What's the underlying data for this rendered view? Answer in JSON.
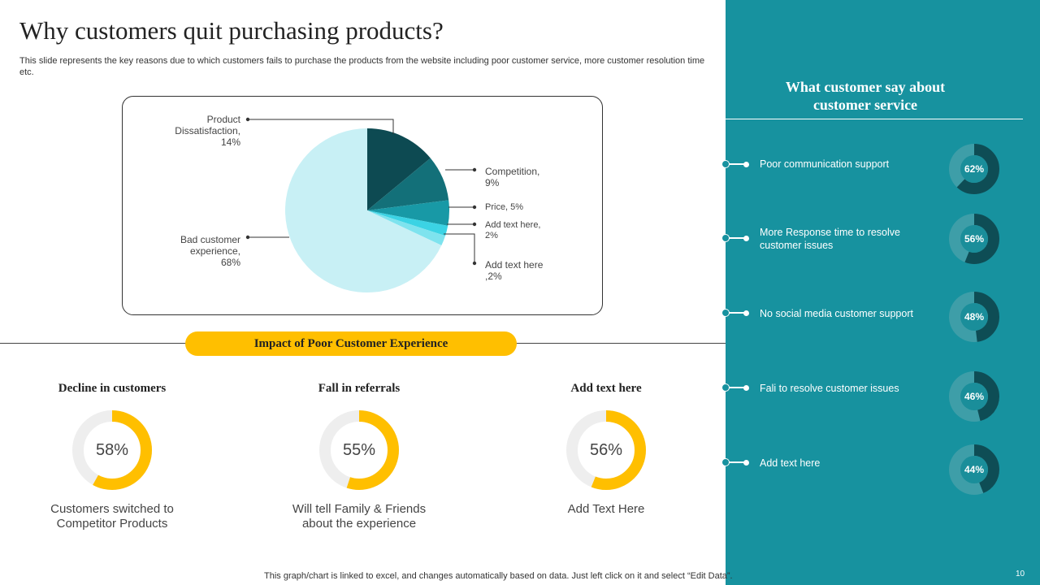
{
  "slide": {
    "title": "Why customers quit purchasing products?",
    "subtitle": "This slide represents the key reasons due to which customers fails to purchase the products from the website including poor customer service, more customer resolution time etc.",
    "footer_note": "This graph/chart is linked to excel,  and changes automatically based on data. Just left click on it and select “Edit Data”.",
    "page_number": "10"
  },
  "chart_data": {
    "type": "pie",
    "slices": [
      {
        "label": "Product Dissatisfaction",
        "value": 14,
        "color": "#0D4A52"
      },
      {
        "label": "Competition",
        "value": 9,
        "color": "#137079"
      },
      {
        "label": "Price",
        "value": 5,
        "color": "#1899A6"
      },
      {
        "label": "Add text here",
        "value": 2,
        "color": "#3BD3E4"
      },
      {
        "label": "Add text here",
        "value": 2,
        "color": "#7EE3EE"
      },
      {
        "label": "Bad customer experience",
        "value": 68,
        "color": "#C8F0F5"
      }
    ],
    "labels_text": {
      "product": [
        "Product",
        "Dissatisfaction,",
        "14%"
      ],
      "competition": [
        "Competition,",
        "9%"
      ],
      "price": [
        "Price, 5%"
      ],
      "add1": [
        "Add text here,",
        "2%"
      ],
      "add2": [
        "Add text here",
        ",2%"
      ],
      "bad": [
        "Bad customer",
        "experience,",
        "68%"
      ]
    }
  },
  "impact": {
    "heading": "Impact  of Poor Customer Experience",
    "accent_color": "#FFBF00",
    "stats": [
      {
        "title": "Decline in customers",
        "value": 58,
        "value_label": "58%",
        "desc_lines": [
          "Customers switched to",
          "Competitor Products"
        ]
      },
      {
        "title": "Fall in referrals",
        "value": 55,
        "value_label": "55%",
        "desc_lines": [
          "Will tell Family & Friends",
          "about the experience"
        ]
      },
      {
        "title": "Add text here",
        "value": 56,
        "value_label": "56%",
        "desc_lines": [
          "Add Text Here"
        ]
      }
    ]
  },
  "panel": {
    "background": "#17929F",
    "heading_lines": [
      "What customer say about",
      "customer service"
    ],
    "items": [
      {
        "text_lines": [
          "Poor communication support"
        ],
        "value": 62,
        "value_label": "62%"
      },
      {
        "text_lines": [
          "More Response time to resolve",
          "customer issues"
        ],
        "value": 56,
        "value_label": "56%"
      },
      {
        "text_lines": [
          "No social media customer support"
        ],
        "value": 48,
        "value_label": "48%"
      },
      {
        "text_lines": [
          "Fali to resolve  customer issues"
        ],
        "value": 46,
        "value_label": "46%"
      },
      {
        "text_lines": [
          "Add text here"
        ],
        "value": 44,
        "value_label": "44%"
      }
    ]
  }
}
